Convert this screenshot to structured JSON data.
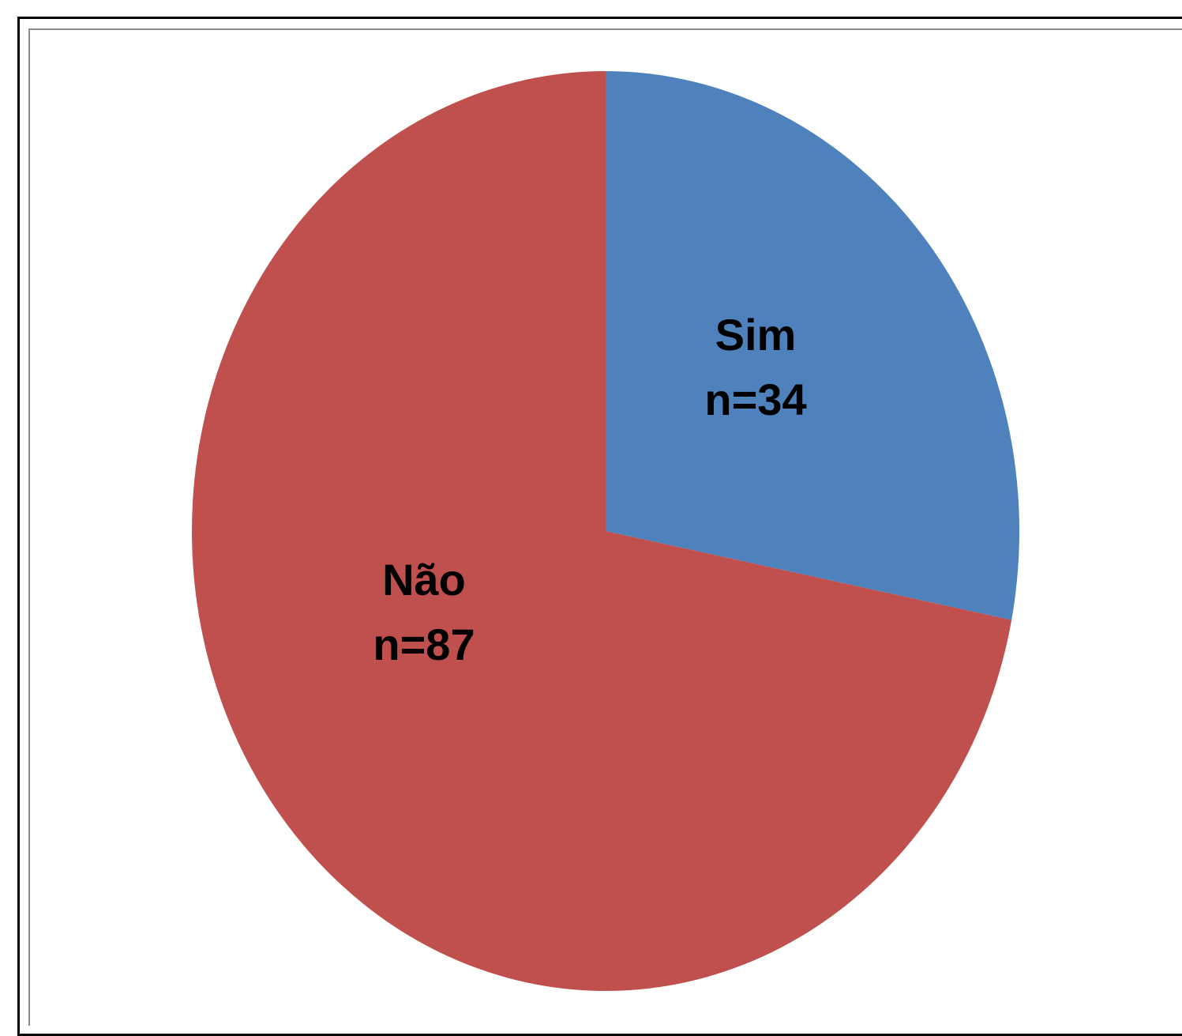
{
  "chart_data": {
    "type": "pie",
    "title": "",
    "slices": [
      {
        "label": "Sim",
        "data_label": "n=34",
        "value": 34,
        "color": "#4f81bd"
      },
      {
        "label": "Não",
        "data_label": "n=87",
        "value": 87,
        "color": "#c0504d"
      }
    ],
    "start_angle": "12 o'clock",
    "direction": "clockwise",
    "legend": "none"
  }
}
